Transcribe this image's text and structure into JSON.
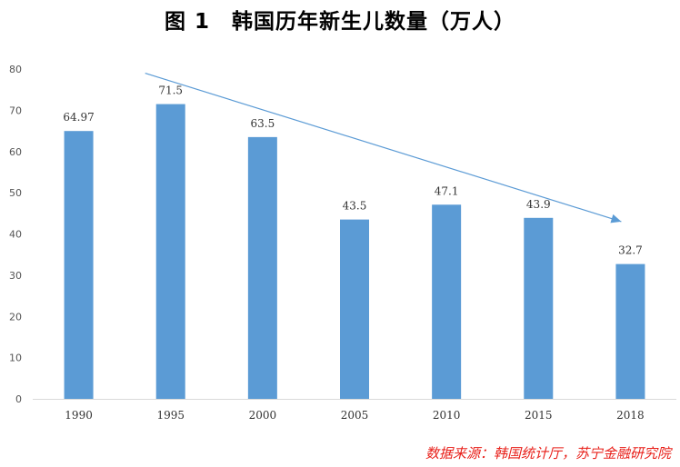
{
  "chart_data": {
    "type": "bar",
    "title": "图 1　韩国历年新生儿数量（万人）",
    "categories": [
      "1990",
      "1995",
      "2000",
      "2005",
      "2010",
      "2015",
      "2018"
    ],
    "values": [
      64.97,
      71.5,
      63.5,
      43.5,
      47.1,
      43.9,
      32.7
    ],
    "data_labels": [
      "64.97",
      "71.5",
      "63.5",
      "43.5",
      "47.1",
      "43.9",
      "32.7"
    ],
    "ylim": [
      0,
      80
    ],
    "yticks": [
      0,
      10,
      20,
      30,
      40,
      50,
      60,
      70,
      80
    ],
    "xlabel": "",
    "ylabel": "",
    "grid": false,
    "bar_color": "#5b9bd5",
    "trend_arrow": {
      "color": "#5b9bd5",
      "from_category": "1995",
      "to_category": "2018"
    }
  },
  "source_note": "数据来源：韩国统计厅，苏宁金融研究院"
}
